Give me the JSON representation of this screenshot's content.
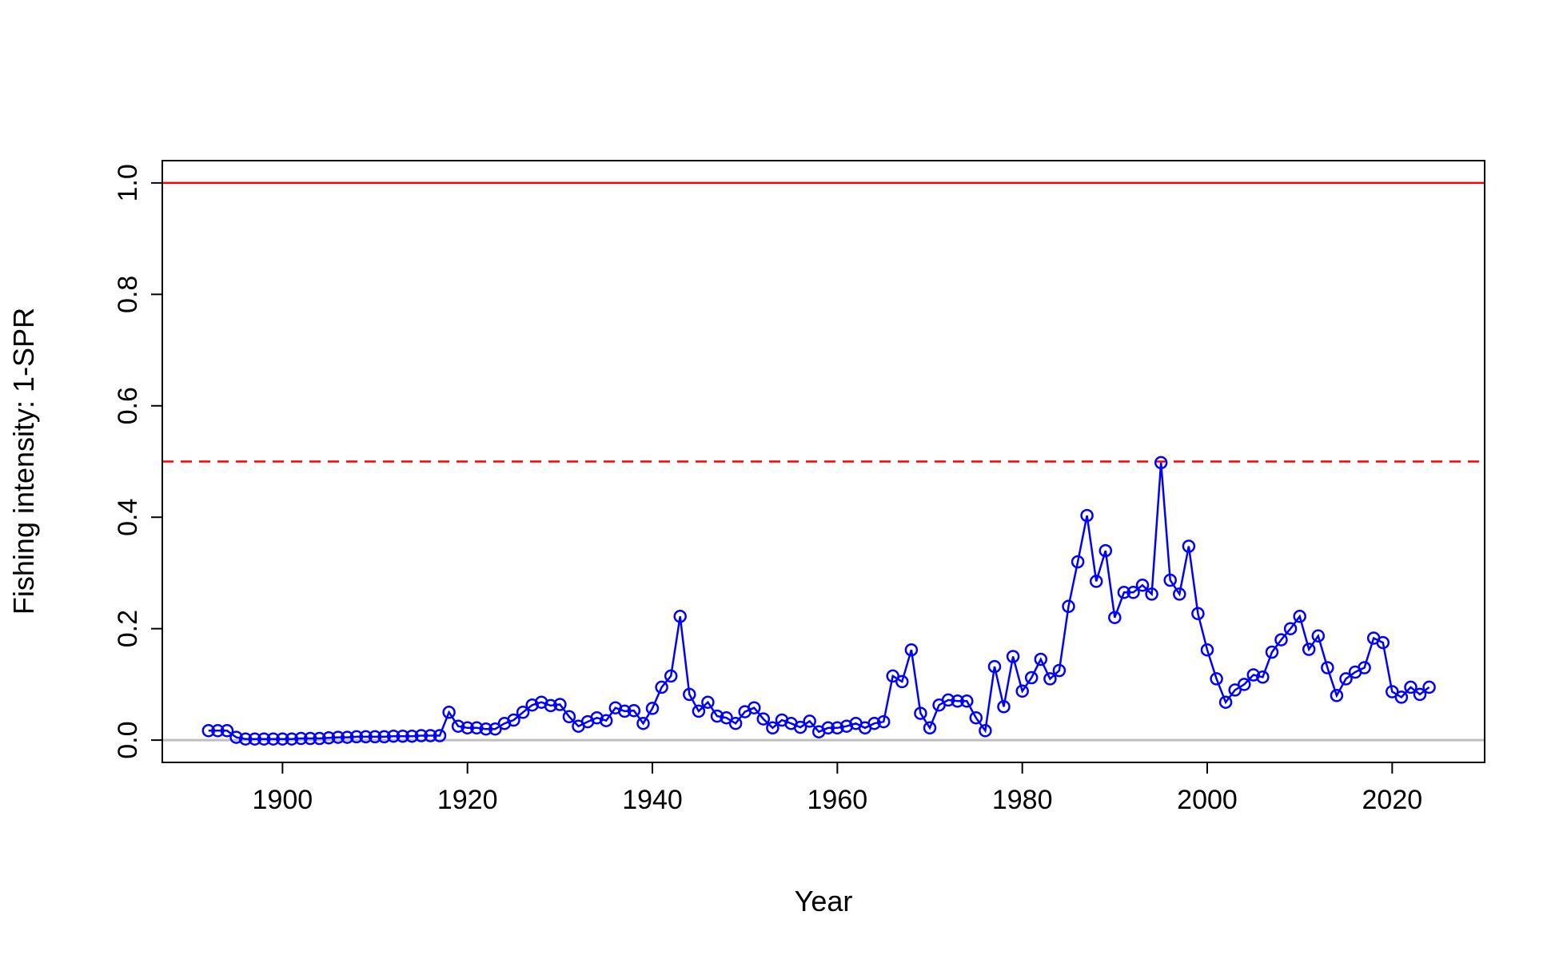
{
  "chart_data": {
    "type": "line",
    "title": "",
    "xlabel": "Year",
    "ylabel": "Fishing intensity: 1-SPR",
    "xlim": [
      1887,
      2030
    ],
    "ylim": [
      -0.04,
      1.04
    ],
    "xticks": [
      "1900",
      "1920",
      "1940",
      "1960",
      "1980",
      "2000",
      "2020"
    ],
    "yticks": [
      "0.0",
      "0.2",
      "0.4",
      "0.6",
      "0.8",
      "1.0"
    ],
    "grid": false,
    "legend": "none",
    "reference_lines": [
      {
        "name": "limit",
        "y": 1.0,
        "color": "#ff0000",
        "style": "solid"
      },
      {
        "name": "target",
        "y": 0.5,
        "color": "#ff0000",
        "style": "dashed"
      },
      {
        "name": "zero",
        "y": 0.0,
        "color": "#bebebe",
        "style": "solid"
      }
    ],
    "series": [
      {
        "name": "1-SPR",
        "color": "#0000ff",
        "marker": "open-circle",
        "x": [
          1892,
          1893,
          1894,
          1895,
          1896,
          1897,
          1898,
          1899,
          1900,
          1901,
          1902,
          1903,
          1904,
          1905,
          1906,
          1907,
          1908,
          1909,
          1910,
          1911,
          1912,
          1913,
          1914,
          1915,
          1916,
          1917,
          1918,
          1919,
          1920,
          1921,
          1922,
          1923,
          1924,
          1925,
          1926,
          1927,
          1928,
          1929,
          1930,
          1931,
          1932,
          1933,
          1934,
          1935,
          1936,
          1937,
          1938,
          1939,
          1940,
          1941,
          1942,
          1943,
          1944,
          1945,
          1946,
          1947,
          1948,
          1949,
          1950,
          1951,
          1952,
          1953,
          1954,
          1955,
          1956,
          1957,
          1958,
          1959,
          1960,
          1961,
          1962,
          1963,
          1964,
          1965,
          1966,
          1967,
          1968,
          1969,
          1970,
          1971,
          1972,
          1973,
          1974,
          1975,
          1976,
          1977,
          1978,
          1979,
          1980,
          1981,
          1982,
          1983,
          1984,
          1985,
          1986,
          1987,
          1988,
          1989,
          1990,
          1991,
          1992,
          1993,
          1994,
          1995,
          1996,
          1997,
          1998,
          1999,
          2000,
          2001,
          2002,
          2003,
          2004,
          2005,
          2006,
          2007,
          2008,
          2009,
          2010,
          2011,
          2012,
          2013,
          2014,
          2015,
          2016,
          2017,
          2018,
          2019,
          2020,
          2021,
          2022,
          2023,
          2024
        ],
        "values": [
          0.017,
          0.017,
          0.017,
          0.005,
          0.002,
          0.002,
          0.002,
          0.002,
          0.002,
          0.002,
          0.003,
          0.003,
          0.003,
          0.004,
          0.005,
          0.005,
          0.006,
          0.006,
          0.006,
          0.006,
          0.007,
          0.007,
          0.007,
          0.008,
          0.008,
          0.008,
          0.05,
          0.025,
          0.022,
          0.022,
          0.02,
          0.02,
          0.03,
          0.036,
          0.05,
          0.063,
          0.068,
          0.062,
          0.064,
          0.042,
          0.025,
          0.033,
          0.04,
          0.035,
          0.058,
          0.052,
          0.053,
          0.03,
          0.057,
          0.095,
          0.115,
          0.222,
          0.082,
          0.052,
          0.068,
          0.043,
          0.04,
          0.03,
          0.051,
          0.058,
          0.038,
          0.022,
          0.036,
          0.03,
          0.023,
          0.034,
          0.015,
          0.022,
          0.022,
          0.025,
          0.03,
          0.022,
          0.03,
          0.033,
          0.115,
          0.105,
          0.162,
          0.048,
          0.022,
          0.063,
          0.072,
          0.07,
          0.07,
          0.04,
          0.017,
          0.132,
          0.06,
          0.15,
          0.088,
          0.112,
          0.145,
          0.11,
          0.125,
          0.24,
          0.32,
          0.403,
          0.285,
          0.34,
          0.22,
          0.265,
          0.265,
          0.278,
          0.262,
          0.498,
          0.287,
          0.262,
          0.348,
          0.227,
          0.162,
          0.11,
          0.068,
          0.09,
          0.1,
          0.117,
          0.113,
          0.158,
          0.18,
          0.2,
          0.222,
          0.163,
          0.187,
          0.13,
          0.08,
          0.11,
          0.122,
          0.13,
          0.183,
          0.175,
          0.087,
          0.077,
          0.095,
          0.082,
          0.095
        ]
      }
    ]
  }
}
